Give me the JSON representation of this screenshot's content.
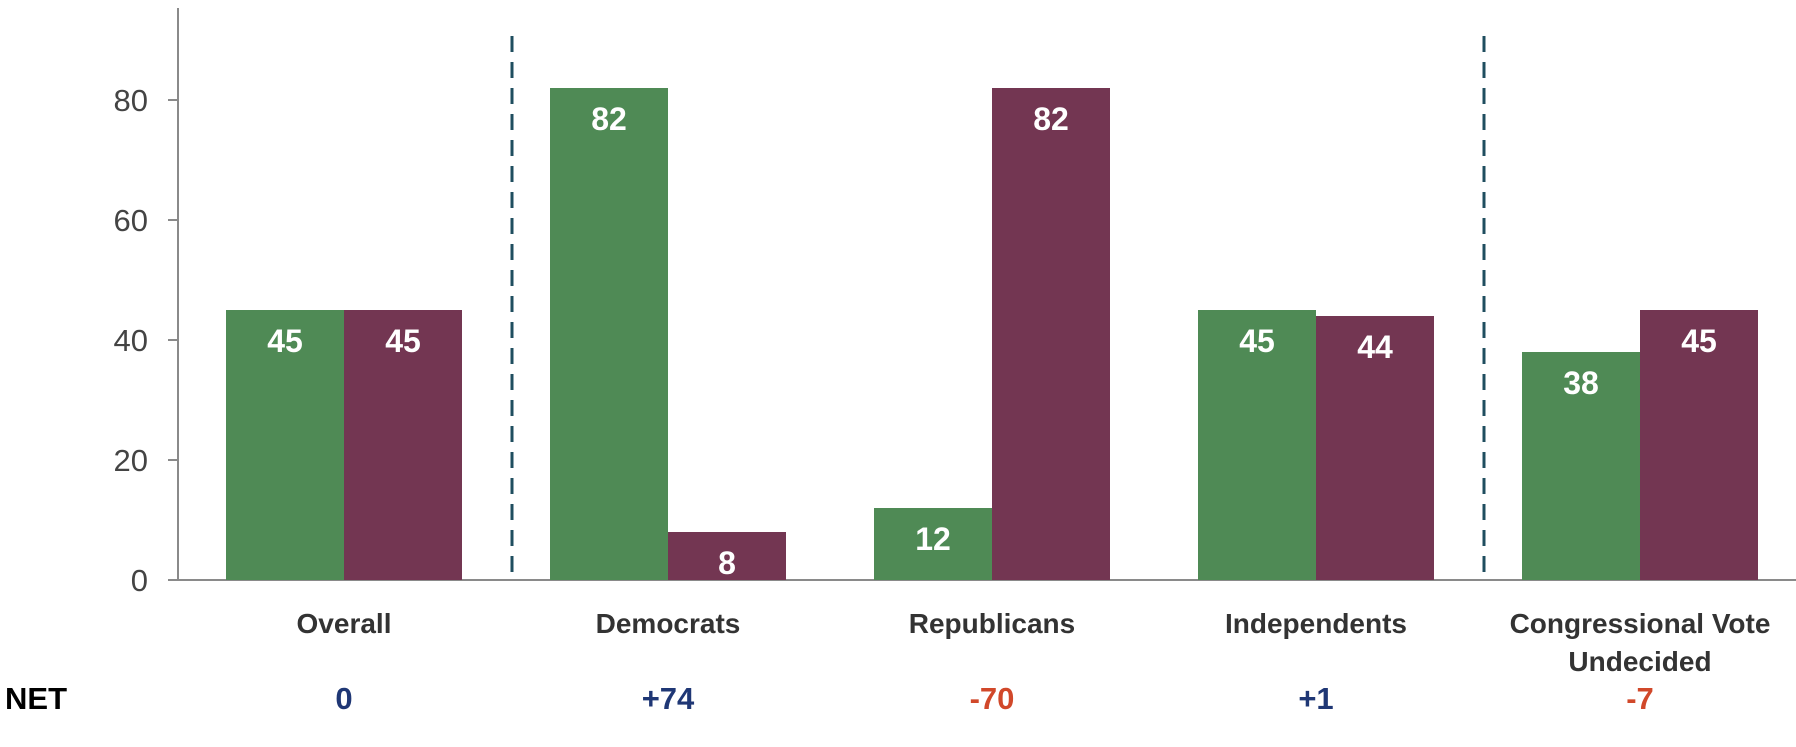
{
  "chart_data": {
    "type": "bar",
    "categories": [
      "Overall",
      "Democrats",
      "Republicans",
      "Independents",
      "Congressional Vote Undecided"
    ],
    "series": [
      {
        "values": [
          45,
          82,
          12,
          45,
          38
        ],
        "color": "#4f8a55"
      },
      {
        "values": [
          45,
          8,
          82,
          44,
          45
        ],
        "color": "#733652"
      }
    ],
    "ylim": [
      0,
      90
    ],
    "yticks": [
      0,
      20,
      40,
      60,
      80
    ],
    "net": {
      "label": "NET",
      "values": [
        "0",
        "+74",
        "-70",
        "+1",
        "-7"
      ],
      "colors": [
        "#1f3775",
        "#1f3775",
        "#d1482a",
        "#1f3775",
        "#d1482a"
      ]
    },
    "divider_color": "#1f4e5f",
    "grid": false
  }
}
